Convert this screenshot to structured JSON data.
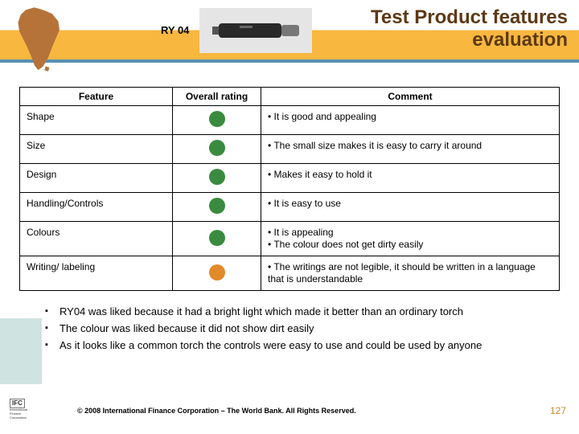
{
  "header": {
    "ry_label": "RY 04",
    "title_line1": "Test Product features",
    "title_line2": "evaluation"
  },
  "table": {
    "headers": {
      "feature": "Feature",
      "rating": "Overall rating",
      "comment": "Comment"
    },
    "rows": [
      {
        "feature": "Shape",
        "rating_color": "#3a8a3f",
        "comments": [
          "It is good and appealing"
        ]
      },
      {
        "feature": "Size",
        "rating_color": "#3a8a3f",
        "comments": [
          "The small size makes it is easy to carry it around"
        ]
      },
      {
        "feature": "Design",
        "rating_color": "#3a8a3f",
        "comments": [
          "Makes it easy to hold it"
        ]
      },
      {
        "feature": "Handling/Controls",
        "rating_color": "#3a8a3f",
        "comments": [
          "It is easy to use"
        ]
      },
      {
        "feature": "Colours",
        "rating_color": "#3a8a3f",
        "comments": [
          "It is appealing",
          "The colour does not get dirty easily"
        ]
      },
      {
        "feature": "Writing/ labeling",
        "rating_color": "#e08a2a",
        "comments": [
          "The writings are not legible, it should be written in a language that is understandable"
        ]
      }
    ]
  },
  "summary": [
    "RY04 was liked because it had a bright light which made it better than an ordinary torch",
    "The colour was liked because it did not show dirt easily",
    "As it looks like a common torch the controls were easy to use and could be used by anyone"
  ],
  "footer": {
    "copyright": "© 2008 International Finance Corporation – The World Bank. All Rights Reserved.",
    "page": "127",
    "ifc": "IFC",
    "ifc_sub": "International\nFinance\nCorporation"
  },
  "colors": {
    "header_band": "#f8b840",
    "header_stripe": "#5a8fb5",
    "title_text": "#5d3a15",
    "africa_fill": "#b5733a",
    "summary_bg": "#cfe4e0",
    "page_color": "#c98a2e"
  }
}
